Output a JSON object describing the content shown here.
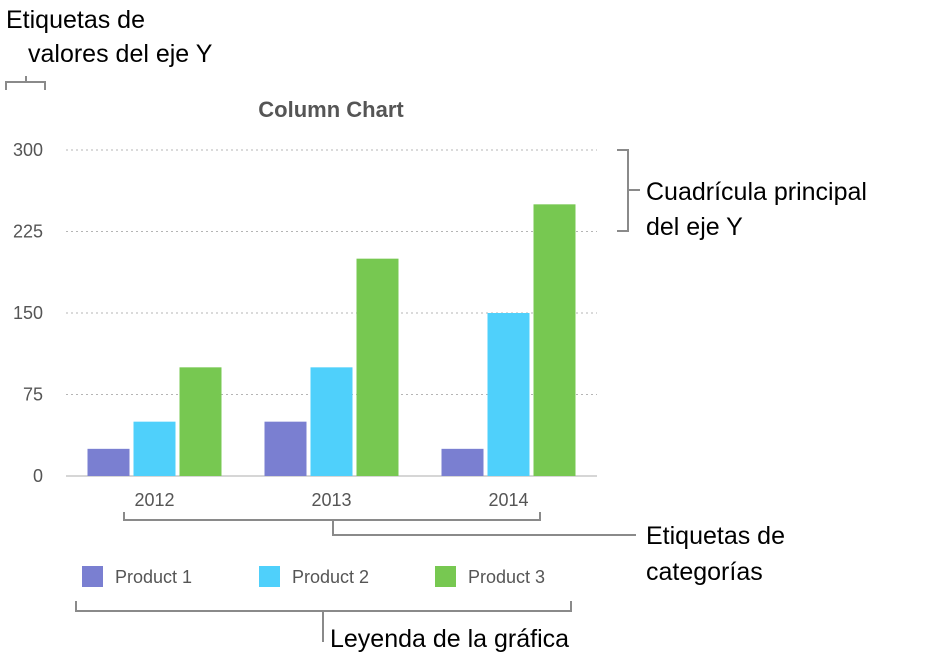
{
  "callouts": {
    "y_value_labels": [
      "Etiquetas de",
      "valores del eje Y"
    ],
    "major_gridlines": [
      "Cuadrícula principal",
      "del eje Y"
    ],
    "category_labels": [
      "Etiquetas de",
      "categorías"
    ],
    "legend": "Leyenda de la gráfica"
  },
  "chart_data": {
    "type": "bar",
    "title": "Column Chart",
    "xlabel": "",
    "ylabel": "",
    "categories": [
      "2012",
      "2013",
      "2014"
    ],
    "series": [
      {
        "name": "Product 1",
        "color": "#7a7fd1",
        "values": [
          25,
          50,
          25
        ]
      },
      {
        "name": "Product 2",
        "color": "#4fd0fb",
        "values": [
          50,
          100,
          150
        ]
      },
      {
        "name": "Product 3",
        "color": "#77c851",
        "values": [
          100,
          200,
          250
        ]
      }
    ],
    "ylim": [
      0,
      300
    ],
    "yticks": [
      0,
      75,
      150,
      225,
      300
    ],
    "grid": true,
    "legend_position": "bottom"
  }
}
